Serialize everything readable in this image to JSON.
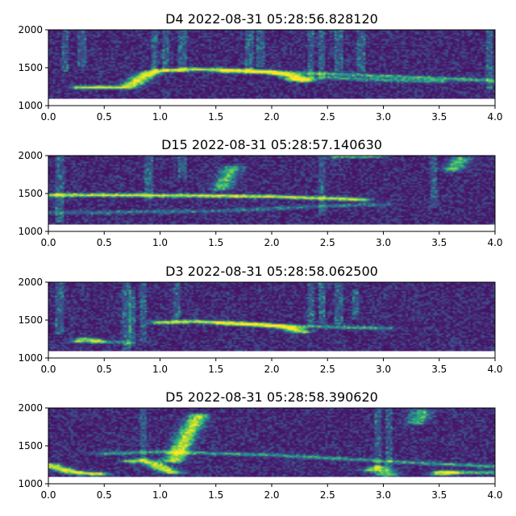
{
  "chart_data": [
    {
      "type": "heatmap",
      "title": "D4 2022-08-31 05:28:56.828120",
      "xlim": [
        0.0,
        4.0
      ],
      "ylim": [
        1000,
        2000
      ],
      "xticks": [
        "0.0",
        "0.5",
        "1.0",
        "1.5",
        "2.0",
        "2.5",
        "3.0",
        "3.5",
        "4.0"
      ],
      "yticks": [
        "1000",
        "1500",
        "2000"
      ],
      "data_region": {
        "x": [
          0.0,
          4.0
        ],
        "y": [
          1090,
          2000
        ]
      },
      "colormap": "viridis",
      "traces": [
        {
          "points": [
            [
              0.3,
              1240
            ],
            [
              0.7,
              1240
            ],
            [
              0.8,
              1330
            ],
            [
              0.9,
              1430
            ],
            [
              1.0,
              1460
            ],
            [
              1.3,
              1480
            ],
            [
              1.6,
              1470
            ],
            [
              1.9,
              1455
            ],
            [
              2.0,
              1440
            ],
            [
              2.2,
              1390
            ],
            [
              2.25,
              1340
            ],
            [
              2.3,
              1330
            ]
          ],
          "intensity": 1.0
        },
        {
          "points": [
            [
              1.6,
              1450
            ],
            [
              2.0,
              1440
            ],
            [
              2.5,
              1420
            ],
            [
              3.0,
              1390
            ],
            [
              3.5,
              1360
            ],
            [
              4.0,
              1330
            ]
          ],
          "intensity": 0.55
        },
        {
          "points": [
            [
              2.2,
              1350
            ],
            [
              2.5,
              1370
            ],
            [
              3.0,
              1340
            ],
            [
              3.5,
              1320
            ]
          ],
          "intensity": 0.45
        }
      ],
      "streaks": [
        [
          0.15,
          1450,
          2000
        ],
        [
          0.3,
          1500,
          2000
        ],
        [
          0.95,
          1400,
          2000
        ],
        [
          1.05,
          1450,
          2000
        ],
        [
          1.2,
          1450,
          2000
        ],
        [
          1.8,
          1450,
          2000
        ],
        [
          1.9,
          1500,
          2000
        ],
        [
          2.35,
          1350,
          2000
        ],
        [
          2.45,
          1350,
          2000
        ],
        [
          2.6,
          1450,
          2000
        ],
        [
          2.8,
          1450,
          2000
        ],
        [
          3.95,
          1200,
          2000
        ]
      ],
      "noise_seed": 11
    },
    {
      "type": "heatmap",
      "title": "D15 2022-08-31 05:28:57.140630",
      "xlim": [
        0.0,
        4.0
      ],
      "ylim": [
        1000,
        2000
      ],
      "xticks": [
        "0.0",
        "0.5",
        "1.0",
        "1.5",
        "2.0",
        "2.5",
        "3.0",
        "3.5",
        "4.0"
      ],
      "yticks": [
        "1000",
        "1500",
        "2000"
      ],
      "data_region": {
        "x": [
          0.0,
          4.0
        ],
        "y": [
          1090,
          2000
        ]
      },
      "colormap": "viridis",
      "traces": [
        {
          "points": [
            [
              0.0,
              1480
            ],
            [
              0.5,
              1480
            ],
            [
              1.0,
              1475
            ],
            [
              1.5,
              1470
            ],
            [
              2.0,
              1460
            ],
            [
              2.3,
              1445
            ],
            [
              2.6,
              1430
            ],
            [
              2.8,
              1420
            ]
          ],
          "intensity": 0.95
        },
        {
          "points": [
            [
              0.0,
              1250
            ],
            [
              0.5,
              1250
            ],
            [
              1.0,
              1260
            ],
            [
              1.5,
              1270
            ],
            [
              2.0,
              1300
            ],
            [
              2.5,
              1340
            ],
            [
              3.0,
              1350
            ]
          ],
          "intensity": 0.35
        },
        {
          "points": [
            [
              2.6,
              1990
            ],
            [
              2.9,
              1990
            ]
          ],
          "intensity": 0.6
        },
        {
          "points": [
            [
              1.55,
              1560
            ],
            [
              1.6,
              1700
            ],
            [
              1.65,
              1850
            ]
          ],
          "intensity": 0.55
        },
        {
          "points": [
            [
              3.62,
              1810
            ],
            [
              3.66,
              1890
            ],
            [
              3.7,
              1960
            ]
          ],
          "intensity": 0.6
        }
      ],
      "streaks": [
        [
          0.1,
          1100,
          2000
        ],
        [
          0.9,
          1400,
          2000
        ],
        [
          1.2,
          1700,
          2000
        ],
        [
          2.45,
          1200,
          2000
        ],
        [
          3.45,
          1300,
          2000
        ]
      ],
      "noise_seed": 23
    },
    {
      "type": "heatmap",
      "title": "D3 2022-08-31 05:28:58.062500",
      "xlim": [
        0.0,
        4.0
      ],
      "ylim": [
        1000,
        2000
      ],
      "xticks": [
        "0.0",
        "0.5",
        "1.0",
        "1.5",
        "2.0",
        "2.5",
        "3.0",
        "3.5",
        "4.0"
      ],
      "yticks": [
        "1000",
        "1500",
        "2000"
      ],
      "data_region": {
        "x": [
          0.0,
          4.0
        ],
        "y": [
          1090,
          2000
        ]
      },
      "colormap": "viridis",
      "traces": [
        {
          "points": [
            [
              0.28,
              1220
            ],
            [
              0.35,
              1250
            ],
            [
              0.42,
              1220
            ]
          ],
          "intensity": 0.75
        },
        {
          "points": [
            [
              0.45,
              1220
            ],
            [
              0.7,
              1200
            ]
          ],
          "intensity": 0.35
        },
        {
          "points": [
            [
              1.0,
              1470
            ],
            [
              1.3,
              1480
            ],
            [
              1.6,
              1465
            ],
            [
              1.9,
              1440
            ],
            [
              2.05,
              1420
            ],
            [
              2.15,
              1400
            ],
            [
              2.25,
              1350
            ]
          ],
          "intensity": 0.95
        },
        {
          "points": [
            [
              1.6,
              1450
            ],
            [
              2.0,
              1430
            ],
            [
              2.5,
              1410
            ],
            [
              2.8,
              1400
            ],
            [
              3.0,
              1390
            ]
          ],
          "intensity": 0.55
        }
      ],
      "streaks": [
        [
          0.1,
          1300,
          2000
        ],
        [
          0.7,
          1100,
          2000
        ],
        [
          0.75,
          1150,
          1900
        ],
        [
          0.85,
          1200,
          2000
        ],
        [
          1.15,
          1450,
          2000
        ],
        [
          2.35,
          1400,
          2000
        ],
        [
          2.45,
          1450,
          2000
        ],
        [
          2.6,
          1450,
          2000
        ],
        [
          2.75,
          1500,
          1900
        ]
      ],
      "noise_seed": 37
    },
    {
      "type": "heatmap",
      "title": "D5 2022-08-31 05:28:58.390620",
      "xlim": [
        0.0,
        4.0
      ],
      "ylim": [
        1000,
        2000
      ],
      "xticks": [
        "0.0",
        "0.5",
        "1.0",
        "1.5",
        "2.0",
        "2.5",
        "3.0",
        "3.5",
        "4.0"
      ],
      "yticks": [
        "1000",
        "1500",
        "2000"
      ],
      "data_region": {
        "x": [
          0.0,
          4.0
        ],
        "y": [
          1090,
          2000
        ]
      },
      "colormap": "viridis",
      "traces": [
        {
          "points": [
            [
              0.0,
              1250
            ],
            [
              0.1,
              1200
            ],
            [
              0.2,
              1160
            ],
            [
              0.3,
              1140
            ],
            [
              0.45,
              1130
            ]
          ],
          "intensity": 1.0
        },
        {
          "points": [
            [
              0.75,
              1300
            ],
            [
              0.85,
              1310
            ],
            [
              0.95,
              1260
            ],
            [
              1.05,
              1180
            ],
            [
              1.12,
              1150
            ]
          ],
          "intensity": 0.9
        },
        {
          "points": [
            [
              1.12,
              1300
            ],
            [
              1.2,
              1520
            ],
            [
              1.28,
              1740
            ],
            [
              1.35,
              1900
            ]
          ],
          "intensity": 0.85
        },
        {
          "points": [
            [
              0.5,
              1400
            ],
            [
              1.0,
              1420
            ],
            [
              1.5,
              1400
            ],
            [
              2.0,
              1380
            ],
            [
              2.5,
              1340
            ],
            [
              3.0,
              1300
            ],
            [
              3.5,
              1260
            ],
            [
              4.0,
              1230
            ]
          ],
          "intensity": 0.5
        },
        {
          "points": [
            [
              2.9,
              1180
            ],
            [
              2.95,
              1220
            ],
            [
              3.0,
              1200
            ],
            [
              3.05,
              1120
            ]
          ],
          "intensity": 0.7
        },
        {
          "points": [
            [
              3.5,
              1130
            ],
            [
              3.55,
              1160
            ],
            [
              3.6,
              1140
            ]
          ],
          "intensity": 0.85
        },
        {
          "points": [
            [
              3.65,
              1150
            ],
            [
              4.0,
              1150
            ]
          ],
          "intensity": 0.6
        },
        {
          "points": [
            [
              3.3,
              1800
            ],
            [
              3.35,
              1960
            ]
          ],
          "intensity": 0.55
        }
      ],
      "streaks": [
        [
          0.85,
          1300,
          2000
        ],
        [
          2.95,
          1100,
          2000
        ],
        [
          3.05,
          1200,
          2000
        ]
      ],
      "noise_seed": 53
    }
  ],
  "colors": {
    "viridis_low": "#440154",
    "viridis_mid": "#21918c",
    "viridis_high": "#fde725",
    "axis": "#000000",
    "background": "#ffffff"
  }
}
